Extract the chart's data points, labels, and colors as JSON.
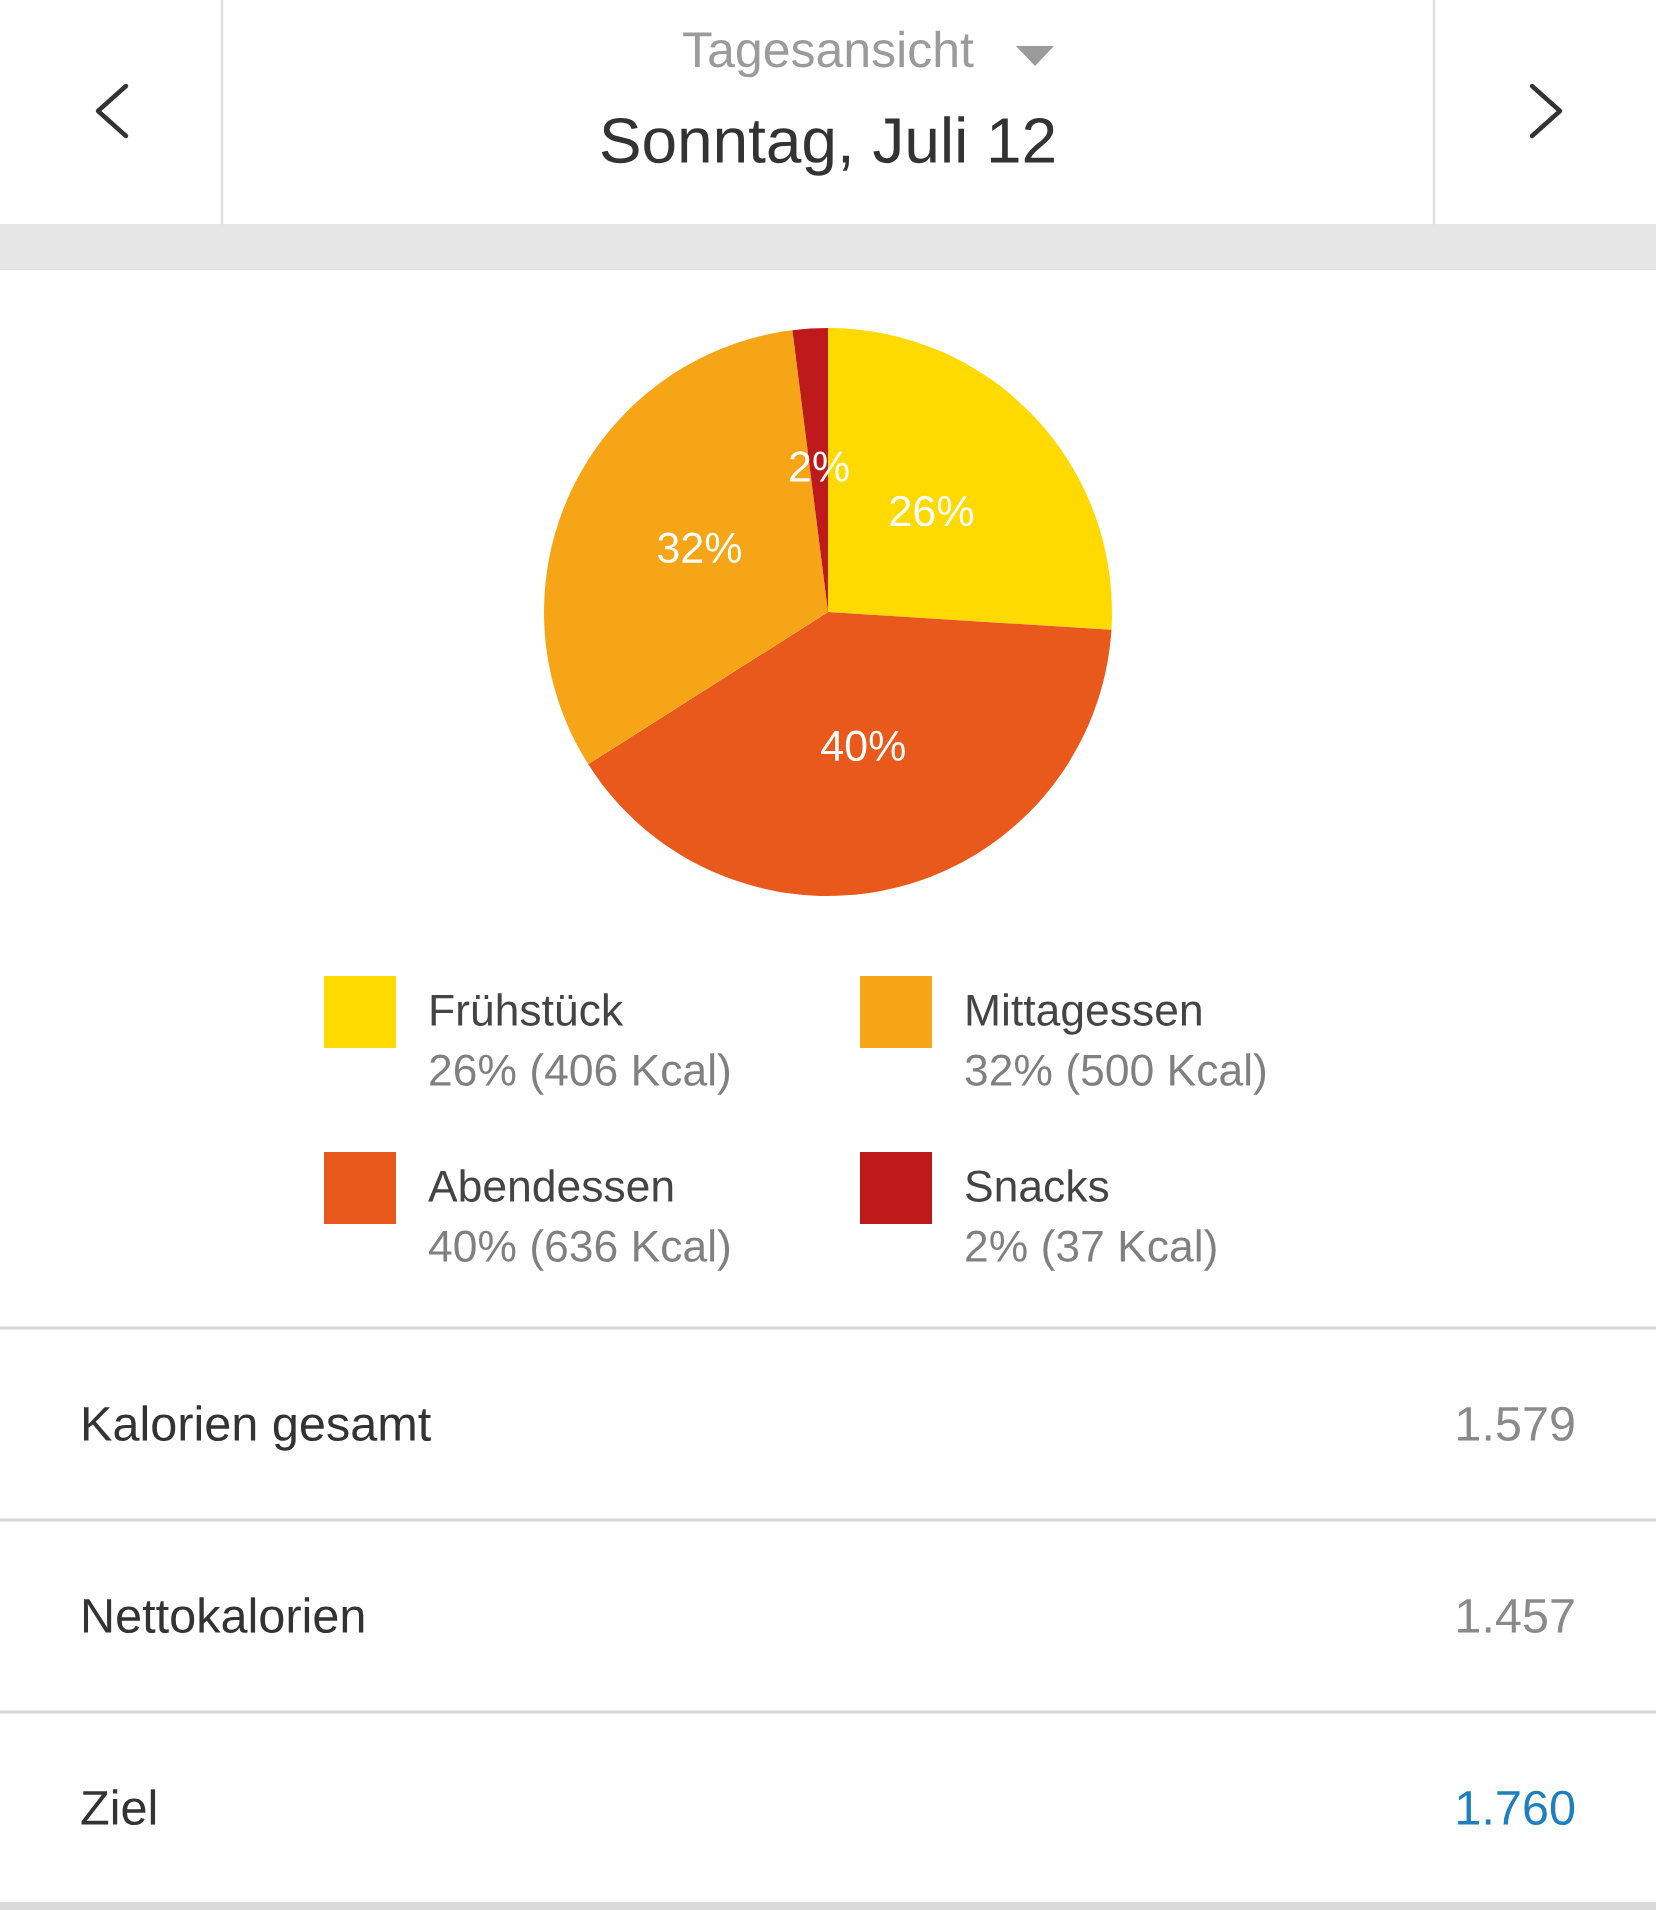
{
  "chart_data": {
    "type": "pie",
    "subtitle": "Tagesansicht",
    "title": "Sonntag, Juli 12",
    "categories": [
      "Frühstück",
      "Abendessen",
      "Mittagessen",
      "Snacks"
    ],
    "values": [
      26,
      40,
      32,
      2
    ],
    "colors": [
      "#ffda00",
      "#e9591b",
      "#f5a515",
      "#be1a1b"
    ],
    "value_labels": [
      "26%",
      "40%",
      "32%",
      "2%"
    ],
    "legend": "bottom",
    "annotations": [
      "26% (406 Kcal)",
      "40% (636 Kcal)",
      "32% (500 Kcal)",
      "2% (37 Kcal)",
      "Kalorien gesamt",
      "1.579",
      "Nettokalorien",
      "1.457",
      "Ziel",
      "1.760"
    ]
  }
}
